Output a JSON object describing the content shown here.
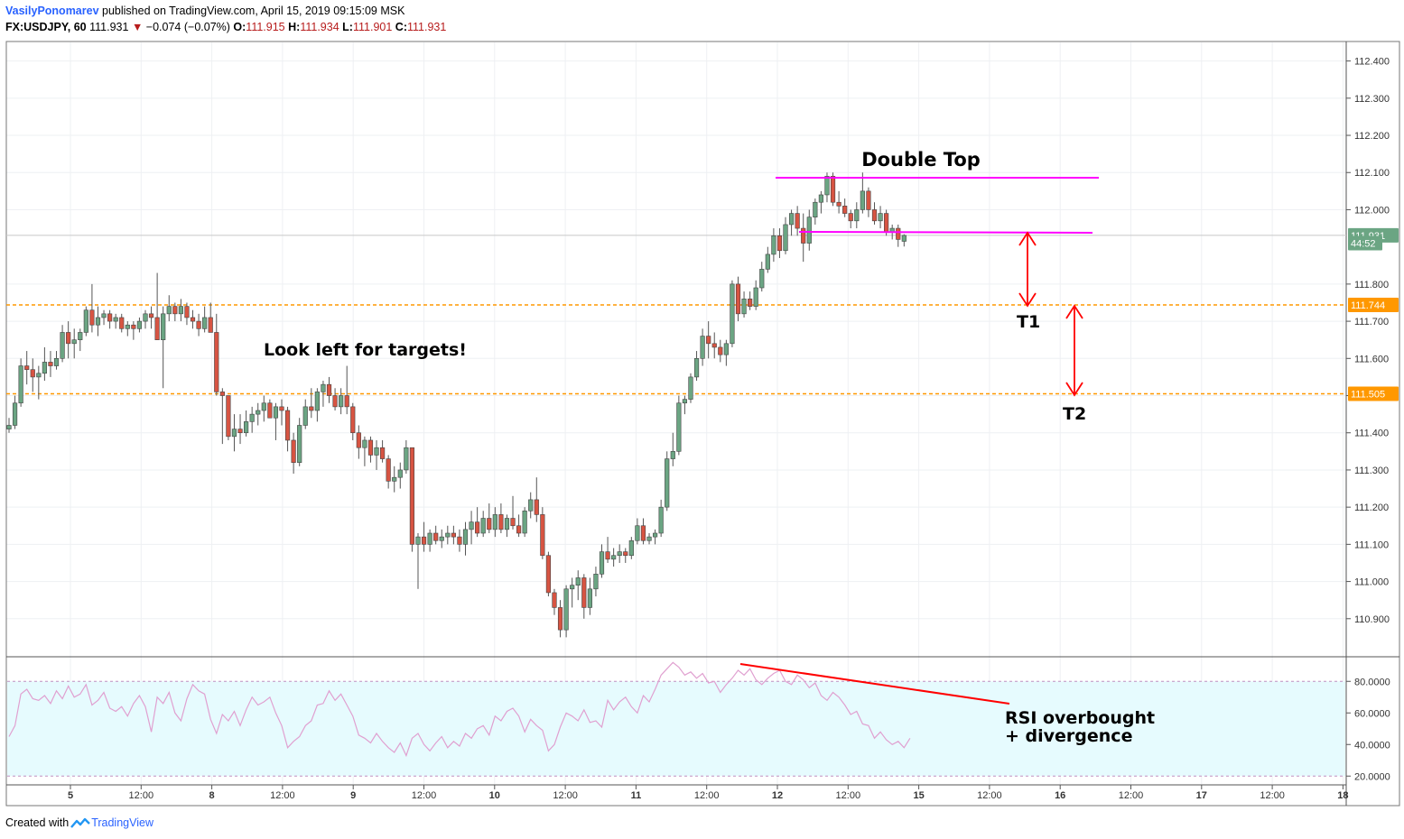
{
  "header": {
    "author": "VasilyPonomarev",
    "published_text": "published on TradingView.com, April 15, 2019 09:15:09 MSK",
    "symbol": "FX:USDJPY, 60",
    "last": "111.931",
    "change": "−0.074 (−0.07%)",
    "open_label": "O:",
    "open": "111.915",
    "high_label": "H:",
    "high": "111.934",
    "low_label": "L:",
    "low": "111.901",
    "close_label": "C:",
    "close": "111.931"
  },
  "footer": {
    "created_with": "Created with",
    "brand": "TradingView"
  },
  "colors": {
    "up": "#6ba583",
    "down": "#d75442",
    "level": "#ff9800",
    "pattern": "#ff00ff",
    "arrow": "#ff0000",
    "rsi": "#e0a0d0",
    "rsi_band": "#e6fbfe"
  },
  "chart_data": [
    {
      "type": "candlestick",
      "symbol": "FX:USDJPY",
      "interval": "60",
      "ylim": [
        110.8,
        112.45
      ],
      "y_ticks": [
        "112.400",
        "112.300",
        "112.200",
        "112.100",
        "112.000",
        "111.800",
        "111.700",
        "111.600",
        "111.500",
        "111.400",
        "111.300",
        "111.200",
        "111.100",
        "111.000",
        "110.900"
      ],
      "x_ticks": [
        "5",
        "12:00",
        "8",
        "12:00",
        "9",
        "12:00",
        "10",
        "12:00",
        "11",
        "12:00",
        "12",
        "12:00",
        "15",
        "12:00",
        "16",
        "12:00",
        "17",
        "12:00",
        "18"
      ],
      "price_labels": [
        {
          "label": "111.931",
          "value": 111.931,
          "color": "#6ba583"
        },
        {
          "label": "44:52",
          "value": 111.91,
          "color": "#6ba583"
        },
        {
          "label": "111.744",
          "value": 111.744,
          "color": "#ff9800"
        },
        {
          "label": "111.505",
          "value": 111.505,
          "color": "#ff9800"
        }
      ],
      "levels": [
        111.744,
        111.505
      ],
      "double_top": {
        "upper_price": 112.085,
        "lower_price": 111.935
      },
      "targets": [
        {
          "name": "T1",
          "from": 111.935,
          "to": 111.744
        },
        {
          "name": "T2",
          "from": 111.744,
          "to": 111.505
        }
      ],
      "annotations": [
        "Double Top",
        "Look left for targets!",
        "T1",
        "T2"
      ],
      "candles": [
        [
          111.41,
          111.44,
          111.4,
          111.42
        ],
        [
          111.42,
          111.5,
          111.41,
          111.48
        ],
        [
          111.48,
          111.6,
          111.47,
          111.58
        ],
        [
          111.58,
          111.62,
          111.53,
          111.57
        ],
        [
          111.57,
          111.6,
          111.51,
          111.55
        ],
        [
          111.55,
          111.58,
          111.49,
          111.56
        ],
        [
          111.56,
          111.63,
          111.54,
          111.59
        ],
        [
          111.59,
          111.62,
          111.55,
          111.58
        ],
        [
          111.58,
          111.62,
          111.57,
          111.6
        ],
        [
          111.6,
          111.69,
          111.59,
          111.67
        ],
        [
          111.67,
          111.7,
          111.6,
          111.64
        ],
        [
          111.64,
          111.68,
          111.6,
          111.65
        ],
        [
          111.65,
          111.68,
          111.62,
          111.67
        ],
        [
          111.67,
          111.74,
          111.66,
          111.73
        ],
        [
          111.73,
          111.8,
          111.67,
          111.69
        ],
        [
          111.69,
          111.74,
          111.66,
          111.71
        ],
        [
          111.71,
          111.73,
          111.69,
          111.72
        ],
        [
          111.72,
          111.73,
          111.68,
          111.7
        ],
        [
          111.7,
          111.72,
          111.68,
          111.71
        ],
        [
          111.71,
          111.72,
          111.67,
          111.68
        ],
        [
          111.68,
          111.7,
          111.66,
          111.69
        ],
        [
          111.69,
          111.7,
          111.65,
          111.68
        ],
        [
          111.68,
          111.71,
          111.67,
          111.7
        ],
        [
          111.7,
          111.73,
          111.68,
          111.72
        ],
        [
          111.72,
          111.74,
          111.68,
          111.71
        ],
        [
          111.71,
          111.83,
          111.66,
          111.65
        ],
        [
          111.65,
          111.74,
          111.52,
          111.72
        ],
        [
          111.72,
          111.77,
          111.7,
          111.74
        ],
        [
          111.74,
          111.75,
          111.7,
          111.72
        ],
        [
          111.72,
          111.76,
          111.7,
          111.74
        ],
        [
          111.74,
          111.75,
          111.69,
          111.71
        ],
        [
          111.71,
          111.73,
          111.68,
          111.7
        ],
        [
          111.7,
          111.72,
          111.66,
          111.68
        ],
        [
          111.68,
          111.74,
          111.67,
          111.71
        ],
        [
          111.71,
          111.75,
          111.67,
          111.67
        ],
        [
          111.67,
          111.72,
          111.5,
          111.51
        ],
        [
          111.51,
          111.52,
          111.37,
          111.5
        ],
        [
          111.5,
          111.5,
          111.38,
          111.39
        ],
        [
          111.39,
          111.45,
          111.35,
          111.41
        ],
        [
          111.41,
          111.45,
          111.37,
          111.4
        ],
        [
          111.4,
          111.46,
          111.39,
          111.43
        ],
        [
          111.43,
          111.47,
          111.4,
          111.45
        ],
        [
          111.45,
          111.48,
          111.42,
          111.46
        ],
        [
          111.46,
          111.5,
          111.43,
          111.48
        ],
        [
          111.48,
          111.49,
          111.44,
          111.44
        ],
        [
          111.44,
          111.48,
          111.38,
          111.47
        ],
        [
          111.47,
          111.49,
          111.42,
          111.46
        ],
        [
          111.46,
          111.47,
          111.35,
          111.38
        ],
        [
          111.38,
          111.4,
          111.29,
          111.32
        ],
        [
          111.32,
          111.44,
          111.31,
          111.42
        ],
        [
          111.42,
          111.49,
          111.41,
          111.47
        ],
        [
          111.47,
          111.52,
          111.44,
          111.46
        ],
        [
          111.46,
          111.52,
          111.43,
          111.51
        ],
        [
          111.51,
          111.54,
          111.47,
          111.53
        ],
        [
          111.53,
          111.55,
          111.48,
          111.5
        ],
        [
          111.5,
          111.52,
          111.46,
          111.47
        ],
        [
          111.47,
          111.52,
          111.45,
          111.5
        ],
        [
          111.5,
          111.58,
          111.45,
          111.47
        ],
        [
          111.47,
          111.48,
          111.38,
          111.4
        ],
        [
          111.4,
          111.42,
          111.33,
          111.36
        ],
        [
          111.36,
          111.39,
          111.31,
          111.38
        ],
        [
          111.38,
          111.39,
          111.32,
          111.34
        ],
        [
          111.34,
          111.38,
          111.3,
          111.36
        ],
        [
          111.36,
          111.38,
          111.32,
          111.33
        ],
        [
          111.33,
          111.34,
          111.25,
          111.27
        ],
        [
          111.27,
          111.31,
          111.24,
          111.28
        ],
        [
          111.28,
          111.32,
          111.25,
          111.3
        ],
        [
          111.3,
          111.38,
          111.29,
          111.36
        ],
        [
          111.36,
          111.36,
          111.08,
          111.1
        ],
        [
          111.1,
          111.13,
          110.98,
          111.12
        ],
        [
          111.12,
          111.16,
          111.08,
          111.1
        ],
        [
          111.1,
          111.14,
          111.08,
          111.13
        ],
        [
          111.13,
          111.15,
          111.1,
          111.11
        ],
        [
          111.11,
          111.14,
          111.09,
          111.12
        ],
        [
          111.12,
          111.15,
          111.1,
          111.13
        ],
        [
          111.13,
          111.15,
          111.1,
          111.12
        ],
        [
          111.12,
          111.14,
          111.08,
          111.1
        ],
        [
          111.1,
          111.16,
          111.07,
          111.14
        ],
        [
          111.14,
          111.19,
          111.1,
          111.16
        ],
        [
          111.16,
          111.2,
          111.12,
          111.13
        ],
        [
          111.13,
          111.19,
          111.12,
          111.17
        ],
        [
          111.17,
          111.21,
          111.13,
          111.14
        ],
        [
          111.14,
          111.2,
          111.12,
          111.18
        ],
        [
          111.18,
          111.21,
          111.13,
          111.14
        ],
        [
          111.14,
          111.18,
          111.12,
          111.17
        ],
        [
          111.17,
          111.23,
          111.14,
          111.15
        ],
        [
          111.15,
          111.18,
          111.12,
          111.13
        ],
        [
          111.13,
          111.2,
          111.12,
          111.19
        ],
        [
          111.19,
          111.24,
          111.17,
          111.22
        ],
        [
          111.22,
          111.28,
          111.16,
          111.18
        ],
        [
          111.18,
          111.2,
          111.06,
          111.07
        ],
        [
          111.07,
          111.08,
          110.96,
          110.97
        ],
        [
          110.97,
          110.98,
          110.91,
          110.93
        ],
        [
          110.93,
          110.95,
          110.85,
          110.87
        ],
        [
          110.87,
          110.99,
          110.85,
          110.98
        ],
        [
          110.98,
          111.01,
          110.93,
          110.99
        ],
        [
          110.99,
          111.03,
          110.95,
          111.01
        ],
        [
          111.01,
          111.02,
          110.9,
          110.93
        ],
        [
          110.93,
          111.01,
          110.91,
          110.98
        ],
        [
          110.98,
          111.04,
          110.96,
          111.02
        ],
        [
          111.02,
          111.1,
          111.01,
          111.08
        ],
        [
          111.08,
          111.12,
          111.05,
          111.06
        ],
        [
          111.06,
          111.09,
          111.04,
          111.07
        ],
        [
          111.07,
          111.1,
          111.05,
          111.08
        ],
        [
          111.08,
          111.09,
          111.05,
          111.07
        ],
        [
          111.07,
          111.12,
          111.06,
          111.11
        ],
        [
          111.11,
          111.17,
          111.1,
          111.15
        ],
        [
          111.15,
          111.17,
          111.1,
          111.11
        ],
        [
          111.11,
          111.13,
          111.1,
          111.12
        ],
        [
          111.12,
          111.14,
          111.1,
          111.13
        ],
        [
          111.13,
          111.22,
          111.12,
          111.2
        ],
        [
          111.2,
          111.35,
          111.19,
          111.33
        ],
        [
          111.33,
          111.4,
          111.31,
          111.35
        ],
        [
          111.35,
          111.5,
          111.34,
          111.48
        ],
        [
          111.48,
          111.5,
          111.45,
          111.49
        ],
        [
          111.49,
          111.56,
          111.48,
          111.55
        ],
        [
          111.55,
          111.62,
          111.54,
          111.6
        ],
        [
          111.6,
          111.68,
          111.58,
          111.66
        ],
        [
          111.66,
          111.7,
          111.6,
          111.64
        ],
        [
          111.64,
          111.67,
          111.6,
          111.63
        ],
        [
          111.63,
          111.65,
          111.59,
          111.61
        ],
        [
          111.61,
          111.65,
          111.58,
          111.64
        ],
        [
          111.64,
          111.81,
          111.63,
          111.8
        ],
        [
          111.8,
          111.82,
          111.7,
          111.72
        ],
        [
          111.72,
          111.78,
          111.71,
          111.76
        ],
        [
          111.76,
          111.78,
          111.73,
          111.74
        ],
        [
          111.74,
          111.81,
          111.73,
          111.79
        ],
        [
          111.79,
          111.86,
          111.78,
          111.84
        ],
        [
          111.84,
          111.9,
          111.83,
          111.88
        ],
        [
          111.88,
          111.95,
          111.86,
          111.93
        ],
        [
          111.93,
          111.95,
          111.87,
          111.89
        ],
        [
          111.89,
          111.98,
          111.88,
          111.96
        ],
        [
          111.96,
          112.0,
          111.93,
          111.99
        ],
        [
          111.99,
          112.01,
          111.93,
          111.95
        ],
        [
          111.95,
          111.99,
          111.86,
          111.91
        ],
        [
          111.91,
          112.0,
          111.89,
          111.98
        ],
        [
          111.98,
          112.03,
          111.96,
          112.02
        ],
        [
          112.02,
          112.05,
          111.99,
          112.04
        ],
        [
          112.04,
          112.1,
          112.02,
          112.09
        ],
        [
          112.09,
          112.1,
          112.01,
          112.02
        ],
        [
          112.02,
          112.05,
          111.99,
          112.01
        ],
        [
          112.01,
          112.03,
          111.98,
          111.99
        ],
        [
          111.99,
          112.0,
          111.95,
          111.97
        ],
        [
          111.97,
          112.02,
          111.95,
          112.0
        ],
        [
          112.0,
          112.1,
          111.99,
          112.05
        ],
        [
          112.05,
          112.06,
          111.98,
          112.0
        ],
        [
          112.0,
          112.02,
          111.96,
          111.97
        ],
        [
          111.97,
          112.01,
          111.95,
          111.99
        ],
        [
          111.99,
          112.0,
          111.93,
          111.94
        ],
        [
          111.94,
          111.96,
          111.92,
          111.95
        ],
        [
          111.95,
          111.96,
          111.9,
          111.92
        ],
        [
          111.915,
          111.934,
          111.901,
          111.931
        ]
      ]
    },
    {
      "type": "line",
      "name": "RSI",
      "ylim": [
        15,
        95
      ],
      "y_ticks": [
        "80.0000",
        "60.0000",
        "40.0000",
        "20.0000"
      ],
      "bands": [
        80,
        20
      ],
      "annotation": [
        "RSI overbought",
        "+ divergence"
      ],
      "values": [
        45,
        52,
        72,
        75,
        69,
        68,
        71,
        66,
        74,
        69,
        77,
        70,
        72,
        78,
        65,
        68,
        73,
        63,
        61,
        64,
        58,
        66,
        71,
        64,
        48,
        70,
        66,
        73,
        60,
        55,
        69,
        78,
        74,
        72,
        56,
        47,
        59,
        55,
        61,
        52,
        62,
        70,
        65,
        67,
        70,
        60,
        52,
        38,
        42,
        45,
        52,
        55,
        65,
        66,
        74,
        68,
        72,
        65,
        58,
        46,
        44,
        41,
        47,
        42,
        38,
        35,
        41,
        33,
        44,
        47,
        40,
        36,
        41,
        45,
        38,
        42,
        39,
        47,
        44,
        50,
        52,
        46,
        58,
        55,
        61,
        63,
        58,
        48,
        56,
        52,
        49,
        36,
        40,
        51,
        60,
        58,
        55,
        62,
        54,
        55,
        51,
        68,
        62,
        67,
        70,
        64,
        60,
        71,
        67,
        75,
        84,
        88,
        92,
        89,
        84,
        86,
        82,
        85,
        79,
        80,
        73,
        78,
        82,
        87,
        84,
        88,
        81,
        78,
        82,
        85,
        87,
        80,
        78,
        84,
        81,
        76,
        79,
        71,
        68,
        73,
        70,
        65,
        59,
        61,
        53,
        52,
        44,
        48,
        43,
        40,
        42,
        38,
        44
      ]
    }
  ]
}
